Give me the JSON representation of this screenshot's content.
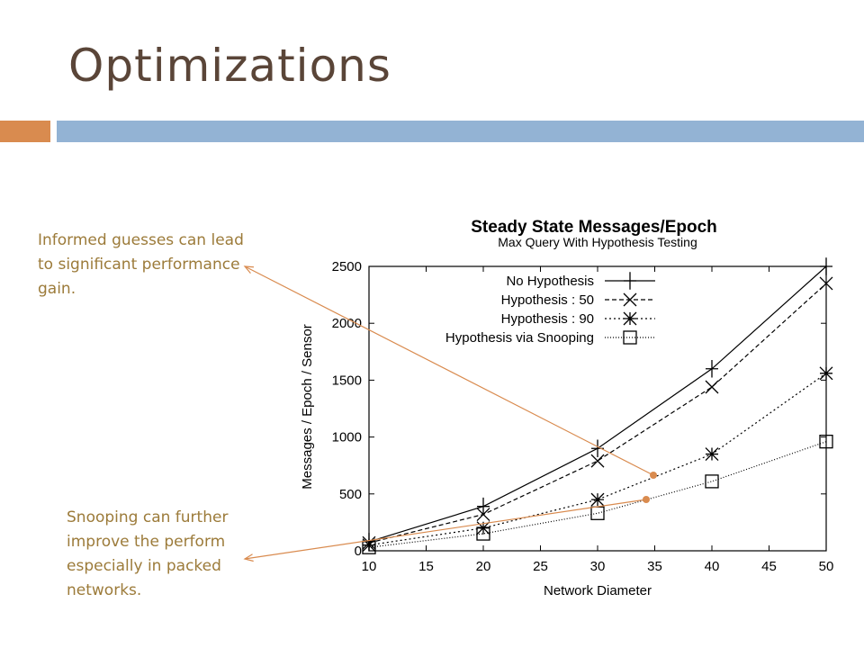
{
  "slide": {
    "title": "Optimizations",
    "annotations": [
      "Informed guesses can lead to significant performance gain.",
      "Snooping can further improve the perform especially in packed networks."
    ],
    "colors": {
      "title": "#5a4538",
      "accent_orange": "#d98b4f",
      "accent_blue": "#93b3d4",
      "annotation_text": "#9c7b3a",
      "arrow": "#d98b4f"
    }
  },
  "chart_data": {
    "type": "line",
    "title": "Steady State Messages/Epoch",
    "subtitle": "Max Query With Hypothesis Testing",
    "xlabel": "Network Diameter",
    "ylabel": "Messages / Epoch / Sensor",
    "xlim": [
      10,
      50
    ],
    "ylim": [
      0,
      2500
    ],
    "xticks": [
      10,
      15,
      20,
      25,
      30,
      35,
      40,
      45,
      50
    ],
    "yticks": [
      0,
      500,
      1000,
      1500,
      2000,
      2500
    ],
    "grid": false,
    "legend_position": "top-left",
    "x": [
      10,
      20,
      30,
      40,
      50
    ],
    "series": [
      {
        "name": "No Hypothesis",
        "values": [
          80,
          390,
          900,
          1600,
          2500
        ],
        "marker": "plus",
        "dash": "solid"
      },
      {
        "name": "Hypothesis : 50",
        "values": [
          70,
          320,
          790,
          1440,
          2350
        ],
        "marker": "x",
        "dash": "dashed"
      },
      {
        "name": "Hypothesis : 90",
        "values": [
          50,
          200,
          450,
          850,
          1560
        ],
        "marker": "star",
        "dash": "dotted"
      },
      {
        "name": "Hypothesis via Snooping",
        "values": [
          30,
          150,
          330,
          610,
          960
        ],
        "marker": "square",
        "dash": "dotted-fine"
      }
    ]
  }
}
